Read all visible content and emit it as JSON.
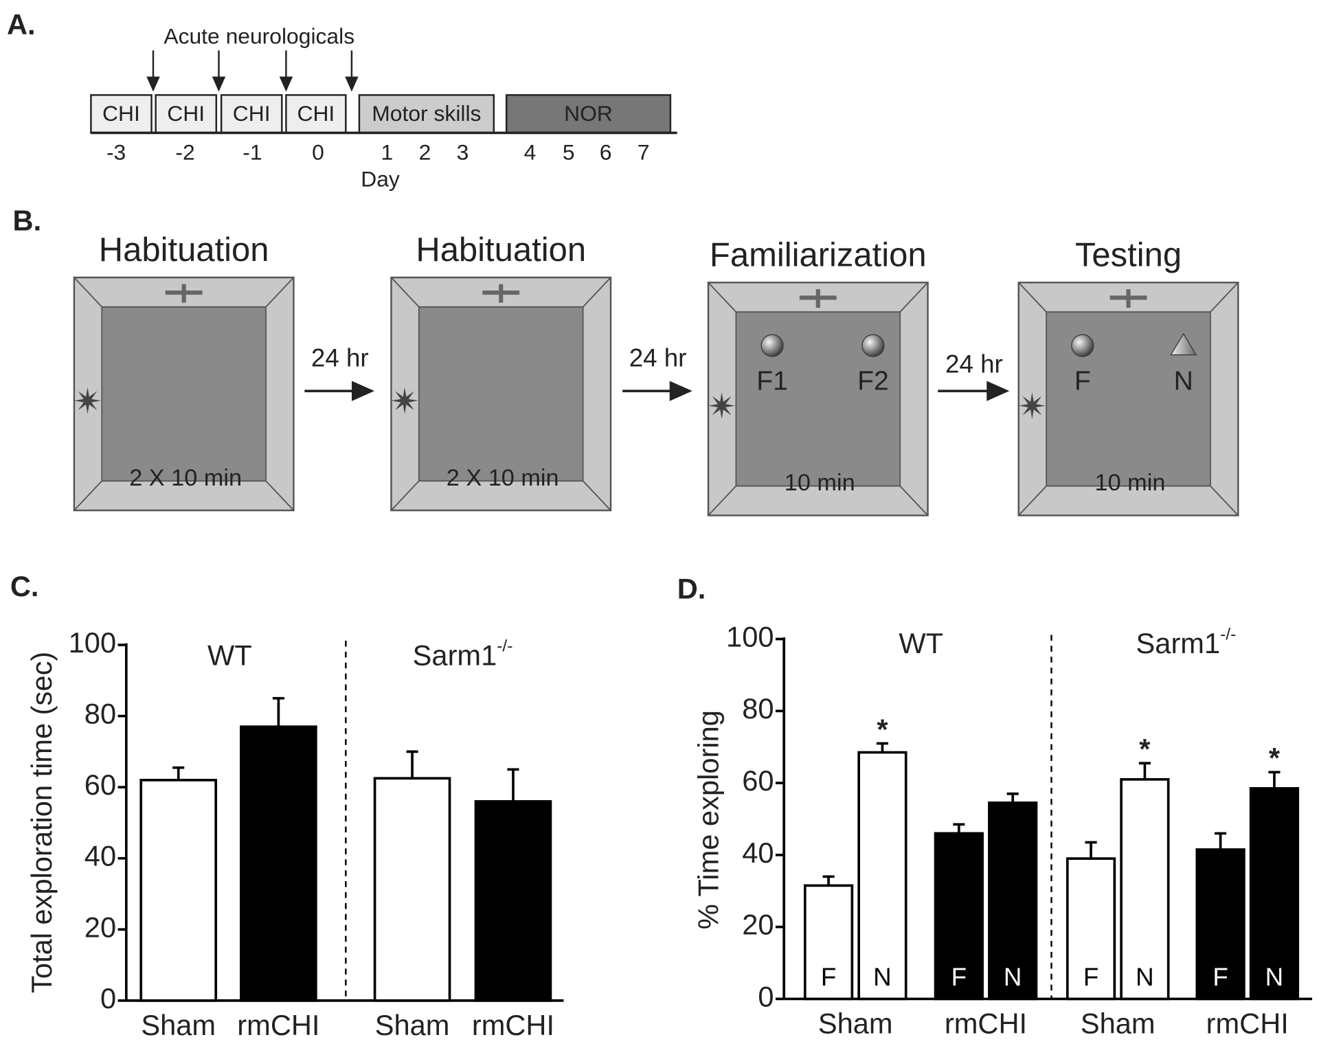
{
  "panel_a": {
    "label": "A.",
    "annotation": "Acute neurologicals",
    "blocks": [
      {
        "label": "CHI",
        "color": "#eeeeee"
      },
      {
        "label": "CHI",
        "color": "#eeeeee"
      },
      {
        "label": "CHI",
        "color": "#eeeeee"
      },
      {
        "label": "CHI",
        "color": "#eeeeee"
      },
      {
        "label": "Motor skills",
        "color": "#cccccc"
      },
      {
        "label": "NOR",
        "color": "#777777"
      }
    ],
    "days": [
      "-3",
      "-2",
      "-1",
      "0",
      "1",
      "2",
      "3",
      "4",
      "5",
      "6",
      "7"
    ],
    "axis_label": "Day"
  },
  "panel_b": {
    "label": "B.",
    "stages": [
      {
        "title": "Habituation",
        "duration": "2 X 10 min"
      },
      {
        "title": "Habituation",
        "duration": "2 X 10 min"
      },
      {
        "title": "Familiarization",
        "duration": "10 min",
        "objects": [
          {
            "label": "F1",
            "shape": "sphere"
          },
          {
            "label": "F2",
            "shape": "sphere"
          }
        ]
      },
      {
        "title": "Testing",
        "duration": "10 min",
        "objects": [
          {
            "label": "F",
            "shape": "sphere"
          },
          {
            "label": "N",
            "shape": "pyramid"
          }
        ]
      }
    ],
    "intervals": [
      "24 hr",
      "24 hr",
      "24 hr"
    ]
  },
  "chart_data": [
    {
      "type": "bar",
      "panel_label": "C.",
      "y_label": "Total exploration time (sec)",
      "groups": [
        {
          "name": "WT"
        },
        {
          "name": "Sarm1",
          "superscript": "-/-"
        }
      ],
      "categories": [
        "Sham",
        "rmCHI",
        "Sham",
        "rmCHI"
      ],
      "values": [
        62,
        77,
        62.5,
        56
      ],
      "errors": [
        3.5,
        8,
        7.5,
        9
      ],
      "colors": [
        "#ffffff",
        "#000000",
        "#ffffff",
        "#000000"
      ],
      "ylim": [
        0,
        100
      ],
      "yticks": [
        0,
        20,
        40,
        60,
        80,
        100
      ]
    },
    {
      "type": "grouped_bar",
      "panel_label": "D.",
      "y_label": "% Time exploring",
      "groups": [
        {
          "name": "WT"
        },
        {
          "name": "Sarm1",
          "superscript": "-/-"
        }
      ],
      "categories": [
        "Sham",
        "rmCHI",
        "Sham",
        "rmCHI"
      ],
      "series": [
        {
          "name": "F",
          "values": [
            31.5,
            46,
            39,
            41.5
          ],
          "errors": [
            2.5,
            2.5,
            4.5,
            4.5
          ],
          "colors": [
            "#ffffff",
            "#000000",
            "#ffffff",
            "#000000"
          ]
        },
        {
          "name": "N",
          "values": [
            68.5,
            54.5,
            61,
            58.5
          ],
          "errors": [
            2.5,
            2.5,
            4.5,
            4.5
          ],
          "colors": [
            "#ffffff",
            "#000000",
            "#ffffff",
            "#000000"
          ],
          "annotations": [
            "*",
            null,
            "*",
            "*"
          ]
        }
      ],
      "ylim": [
        0,
        100
      ],
      "yticks": [
        0,
        20,
        40,
        60,
        80,
        100
      ]
    }
  ]
}
